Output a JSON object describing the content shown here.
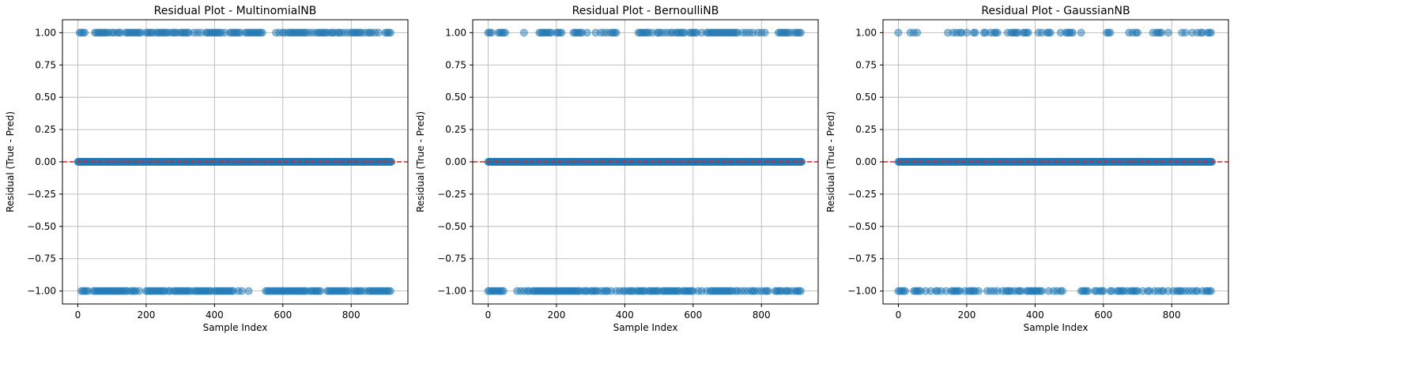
{
  "colors": {
    "point": "#1f77b4",
    "zero_line": "#d62728",
    "grid": "#b0b0b0",
    "axis": "#000000"
  },
  "chart_data": [
    {
      "type": "scatter",
      "title": "Residual Plot - MultinomialNB",
      "xlabel": "Sample Index",
      "ylabel": "Residual (True - Pred)",
      "xlim": [
        -45,
        966
      ],
      "ylim": [
        -1.1,
        1.1
      ],
      "xticks": [
        0,
        200,
        400,
        600,
        800
      ],
      "yticks": [
        -1.0,
        -0.75,
        -0.5,
        -0.25,
        0.0,
        0.25,
        0.5,
        0.75,
        1.0
      ],
      "ytick_labels": [
        "−1.00",
        "−0.75",
        "−0.50",
        "−0.25",
        "0.00",
        "0.25",
        "0.50",
        "0.75",
        "1.00"
      ],
      "grid": true,
      "reference_line": {
        "y": 0,
        "style": "dashed",
        "color": "#d62728"
      },
      "n_samples": 920,
      "series": [
        {
          "y": 1,
          "x": [
            5,
            10,
            15,
            20,
            50,
            55,
            60,
            65,
            70,
            75,
            80,
            85,
            90,
            100,
            105,
            115,
            120,
            125,
            140,
            145,
            150,
            155,
            160,
            165,
            170,
            175,
            180,
            185,
            200,
            205,
            210,
            215,
            220,
            230,
            235,
            240,
            245,
            250,
            255,
            260,
            265,
            275,
            280,
            285,
            290,
            300,
            305,
            310,
            315,
            320,
            325,
            340,
            350,
            360,
            375,
            380,
            385,
            390,
            395,
            400,
            405,
            410,
            415,
            420,
            430,
            445,
            450,
            455,
            460,
            465,
            470,
            475,
            490,
            495,
            500,
            505,
            510,
            515,
            520,
            525,
            530,
            535,
            540,
            580,
            590,
            600,
            605,
            615,
            620,
            625,
            630,
            635,
            640,
            645,
            650,
            655,
            660,
            665,
            670,
            680,
            690,
            700,
            705,
            710,
            715,
            720,
            725,
            730,
            740,
            745,
            750,
            760,
            765,
            770,
            780,
            790,
            800,
            805,
            810,
            815,
            820,
            825,
            830,
            840,
            850,
            855,
            860,
            870,
            880,
            900,
            905,
            910,
            915
          ]
        },
        {
          "y": 0,
          "x_range": [
            0,
            919
          ],
          "step": 2
        },
        {
          "y": -1,
          "x": [
            10,
            15,
            20,
            25,
            30,
            45,
            50,
            55,
            60,
            65,
            70,
            75,
            80,
            85,
            90,
            95,
            100,
            105,
            110,
            115,
            120,
            125,
            130,
            135,
            140,
            145,
            155,
            160,
            165,
            170,
            180,
            200,
            205,
            210,
            215,
            220,
            225,
            230,
            235,
            240,
            245,
            250,
            255,
            265,
            270,
            280,
            285,
            290,
            295,
            300,
            305,
            310,
            315,
            320,
            325,
            330,
            340,
            345,
            350,
            355,
            360,
            365,
            370,
            375,
            380,
            385,
            390,
            400,
            405,
            410,
            415,
            420,
            425,
            430,
            435,
            440,
            445,
            450,
            455,
            470,
            480,
            500,
            550,
            555,
            560,
            565,
            570,
            575,
            580,
            585,
            590,
            595,
            600,
            605,
            610,
            615,
            620,
            625,
            630,
            635,
            640,
            645,
            650,
            655,
            660,
            665,
            670,
            680,
            685,
            690,
            695,
            700,
            705,
            710,
            730,
            735,
            740,
            745,
            750,
            755,
            760,
            765,
            770,
            775,
            780,
            785,
            790,
            800,
            810,
            815,
            820,
            825,
            830,
            840,
            850,
            855,
            860,
            865,
            870,
            875,
            880,
            885,
            890,
            895,
            900,
            905,
            910,
            915
          ]
        }
      ]
    },
    {
      "type": "scatter",
      "title": "Residual Plot - BernoulliNB",
      "xlabel": "Sample Index",
      "ylabel": "Residual (True - Pred)",
      "xlim": [
        -45,
        966
      ],
      "ylim": [
        -1.1,
        1.1
      ],
      "xticks": [
        0,
        200,
        400,
        600,
        800
      ],
      "yticks": [
        -1.0,
        -0.75,
        -0.5,
        -0.25,
        0.0,
        0.25,
        0.5,
        0.75,
        1.0
      ],
      "ytick_labels": [
        "−1.00",
        "−0.75",
        "−0.50",
        "−0.25",
        "0.00",
        "0.25",
        "0.50",
        "0.75",
        "1.00"
      ],
      "grid": true,
      "reference_line": {
        "y": 0,
        "style": "dashed",
        "color": "#d62728"
      },
      "n_samples": 920,
      "series": [
        {
          "y": 1,
          "x": [
            0,
            5,
            10,
            30,
            35,
            40,
            45,
            50,
            105,
            150,
            155,
            160,
            165,
            170,
            175,
            180,
            185,
            200,
            205,
            210,
            215,
            250,
            255,
            260,
            265,
            270,
            275,
            290,
            315,
            330,
            340,
            350,
            360,
            365,
            370,
            375,
            440,
            445,
            450,
            455,
            460,
            465,
            470,
            480,
            495,
            500,
            505,
            515,
            525,
            535,
            540,
            550,
            555,
            560,
            565,
            570,
            575,
            590,
            595,
            600,
            605,
            610,
            625,
            640,
            645,
            650,
            655,
            660,
            665,
            670,
            675,
            680,
            685,
            690,
            695,
            700,
            705,
            710,
            715,
            720,
            725,
            730,
            745,
            755,
            765,
            775,
            790,
            800,
            810,
            850,
            855,
            860,
            865,
            870,
            875,
            880,
            890,
            900,
            905,
            910,
            915
          ]
        },
        {
          "y": 0,
          "x_range": [
            0,
            919
          ],
          "step": 2
        },
        {
          "y": -1,
          "x": [
            0,
            5,
            10,
            15,
            20,
            25,
            30,
            35,
            40,
            45,
            85,
            95,
            105,
            115,
            120,
            130,
            135,
            140,
            145,
            150,
            155,
            160,
            165,
            170,
            175,
            180,
            185,
            190,
            195,
            200,
            205,
            210,
            215,
            220,
            225,
            230,
            235,
            240,
            245,
            250,
            255,
            260,
            265,
            270,
            280,
            285,
            290,
            300,
            305,
            310,
            315,
            320,
            330,
            340,
            345,
            350,
            360,
            375,
            385,
            395,
            400,
            410,
            415,
            420,
            425,
            435,
            440,
            445,
            450,
            455,
            460,
            470,
            475,
            480,
            485,
            490,
            495,
            500,
            510,
            515,
            520,
            525,
            530,
            535,
            540,
            545,
            550,
            555,
            560,
            570,
            575,
            580,
            585,
            590,
            595,
            600,
            615,
            625,
            640,
            650,
            655,
            660,
            665,
            670,
            675,
            680,
            685,
            690,
            695,
            700,
            705,
            710,
            715,
            725,
            730,
            740,
            750,
            760,
            770,
            775,
            780,
            790,
            800,
            810,
            815,
            820,
            840,
            845,
            850,
            855,
            860,
            870,
            875,
            880,
            890,
            900,
            905,
            910,
            915
          ]
        }
      ]
    },
    {
      "type": "scatter",
      "title": "Residual Plot - GaussianNB",
      "xlabel": "Sample Index",
      "ylabel": "Residual (True - Pred)",
      "xlim": [
        -45,
        966
      ],
      "ylim": [
        -1.1,
        1.1
      ],
      "xticks": [
        0,
        200,
        400,
        600,
        800
      ],
      "yticks": [
        -1.0,
        -0.75,
        -0.5,
        -0.25,
        0.0,
        0.25,
        0.5,
        0.75,
        1.0
      ],
      "ytick_labels": [
        "−1.00",
        "−0.75",
        "−0.50",
        "−0.25",
        "0.00",
        "0.25",
        "0.50",
        "0.75",
        "1.00"
      ],
      "grid": true,
      "reference_line": {
        "y": 0,
        "style": "dashed",
        "color": "#d62728"
      },
      "n_samples": 920,
      "series": [
        {
          "y": 1,
          "x": [
            0,
            35,
            45,
            55,
            145,
            160,
            170,
            180,
            185,
            200,
            220,
            225,
            250,
            255,
            270,
            280,
            285,
            290,
            320,
            330,
            335,
            340,
            345,
            350,
            365,
            370,
            375,
            380,
            410,
            420,
            435,
            440,
            445,
            475,
            490,
            495,
            500,
            505,
            510,
            535,
            610,
            615,
            620,
            675,
            685,
            695,
            700,
            745,
            755,
            760,
            765,
            770,
            790,
            830,
            840,
            860,
            875,
            885,
            890,
            905,
            910,
            915
          ]
        },
        {
          "y": 0,
          "x_range": [
            0,
            919
          ],
          "step": 2
        },
        {
          "y": -1,
          "x": [
            0,
            5,
            10,
            15,
            20,
            45,
            50,
            55,
            60,
            65,
            80,
            95,
            110,
            115,
            125,
            140,
            155,
            160,
            165,
            170,
            175,
            180,
            195,
            205,
            210,
            215,
            220,
            225,
            235,
            260,
            270,
            280,
            290,
            305,
            315,
            320,
            325,
            330,
            340,
            350,
            355,
            360,
            375,
            380,
            385,
            390,
            395,
            400,
            405,
            410,
            415,
            420,
            440,
            455,
            465,
            475,
            480,
            535,
            540,
            545,
            550,
            555,
            575,
            580,
            590,
            595,
            600,
            620,
            625,
            640,
            645,
            650,
            655,
            660,
            670,
            680,
            685,
            690,
            695,
            700,
            715,
            730,
            735,
            750,
            760,
            770,
            775,
            790,
            805,
            815,
            820,
            825,
            830,
            840,
            850,
            860,
            870,
            875,
            890,
            900,
            905,
            910,
            915
          ]
        }
      ]
    }
  ]
}
